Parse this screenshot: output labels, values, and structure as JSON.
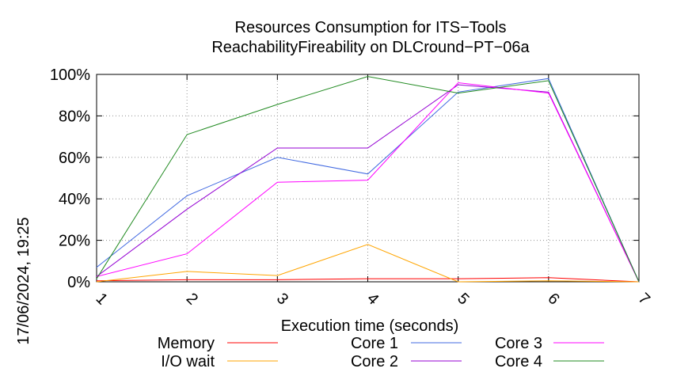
{
  "chart_data": {
    "type": "line",
    "title": "Resources Consumption for ITS−Tools",
    "subtitle": "ReachabilityFireability on DLCround−PT−06a",
    "xlabel": "Execution time (seconds)",
    "ylabel": "",
    "side_label": "17/06/2024, 19:25",
    "x": [
      1,
      2,
      3,
      4,
      5,
      6,
      7
    ],
    "xticks": [
      "1",
      "2",
      "3",
      "4",
      "5",
      "6",
      "7"
    ],
    "yticks": [
      "0%",
      "20%",
      "40%",
      "60%",
      "80%",
      "100%"
    ],
    "xlim": [
      1,
      7
    ],
    "ylim": [
      0,
      100
    ],
    "grid": true,
    "legend_position": "bottom",
    "series": [
      {
        "name": "Memory",
        "color": "#ff0000",
        "values": [
          0.5,
          1,
          1,
          1.5,
          1.5,
          2,
          0
        ]
      },
      {
        "name": "I/O wait",
        "color": "#ffa500",
        "values": [
          0,
          5,
          3,
          18,
          0,
          0.5,
          0
        ]
      },
      {
        "name": "Core 1",
        "color": "#4169e1",
        "values": [
          7,
          41.5,
          60,
          52,
          91.5,
          98,
          0
        ]
      },
      {
        "name": "Core 2",
        "color": "#9400d3",
        "values": [
          2.5,
          35,
          64.5,
          64.5,
          95,
          91.5,
          0
        ]
      },
      {
        "name": "Core 3",
        "color": "#ff00ff",
        "values": [
          2.5,
          13.5,
          48,
          49,
          96,
          91,
          0
        ]
      },
      {
        "name": "Core 4",
        "color": "#228b22",
        "values": [
          1.5,
          71,
          85.5,
          99,
          91,
          97,
          0
        ]
      }
    ]
  }
}
